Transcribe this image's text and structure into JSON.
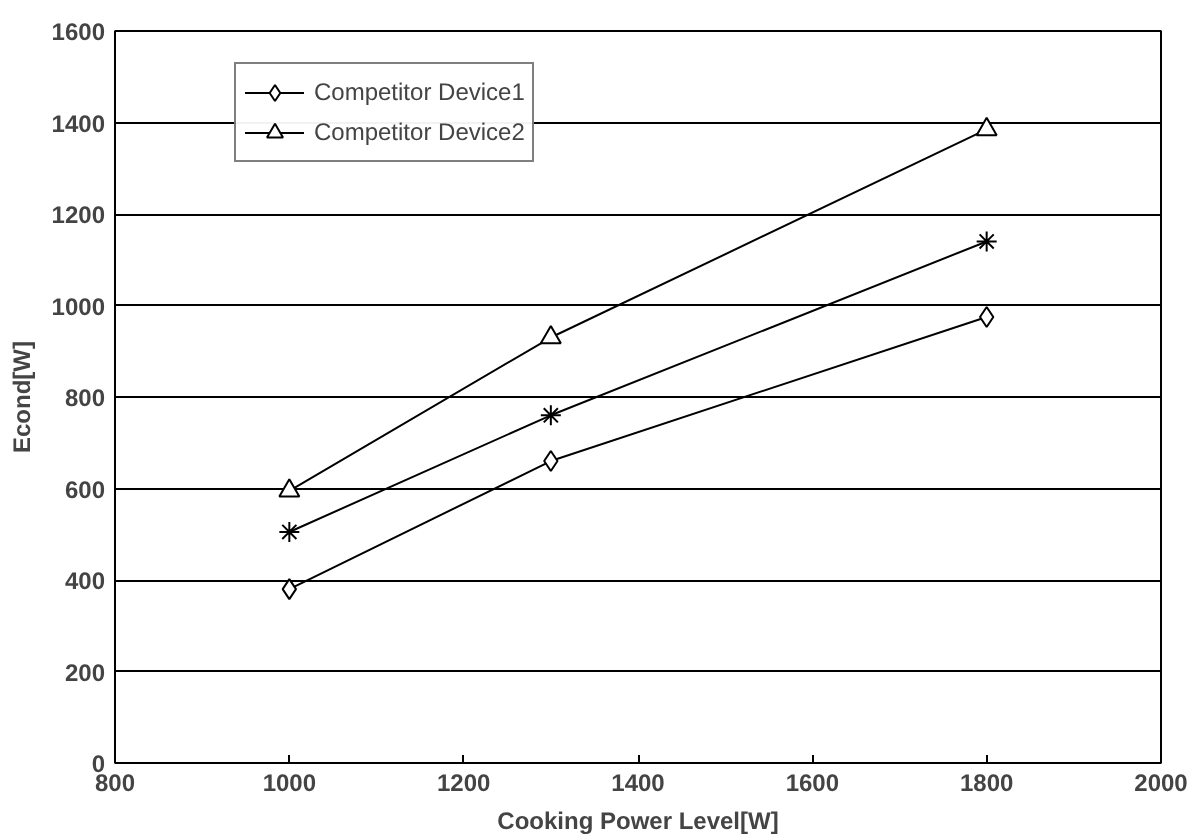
{
  "chart_data": {
    "type": "line",
    "xlabel": "Cooking Power Level[W]",
    "ylabel": "Econd[W]",
    "x": [
      1000,
      1300,
      1800
    ],
    "series": [
      {
        "color": "#000000",
        "marker": "cross",
        "values": [
          505,
          760,
          1140
        ]
      },
      {
        "name": "Competitor Device1",
        "color": "#000000",
        "marker": "diamond",
        "values": [
          380,
          660,
          975
        ]
      },
      {
        "name": "Competitor Device2",
        "color": "#000000",
        "marker": "triangle",
        "values": [
          595,
          930,
          1385
        ]
      }
    ],
    "xlim": [
      800,
      2000
    ],
    "xticks": [
      800,
      1000,
      1200,
      1400,
      1600,
      1800,
      2000
    ],
    "ylim": [
      0,
      1600
    ],
    "yticks": [
      0,
      200,
      400,
      600,
      800,
      1000,
      1200,
      1400,
      1600
    ],
    "grid": "y",
    "legend": "top left",
    "line_style": "solid"
  }
}
